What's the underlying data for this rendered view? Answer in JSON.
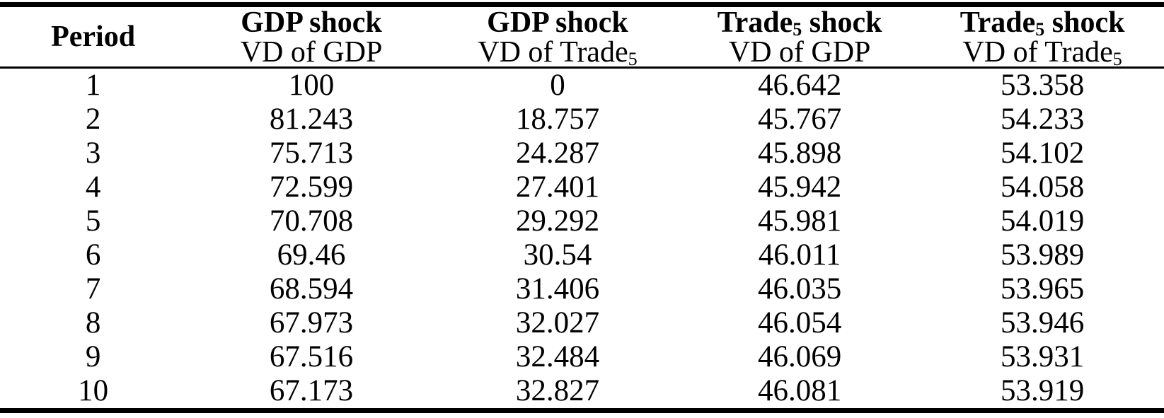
{
  "colors": {
    "text": "#000000",
    "border": "#000000",
    "background": "#ffffff"
  },
  "table": {
    "headers": [
      {
        "top": {
          "pre": "Period"
        }
      },
      {
        "top": {
          "pre": "GDP shock"
        },
        "bottom": {
          "pre": "VD of GDP"
        }
      },
      {
        "top": {
          "pre": "GDP shock"
        },
        "bottom": {
          "pre": "VD of Trade",
          "sub": "5"
        }
      },
      {
        "top": {
          "pre": "Trade",
          "sub": "5",
          "post": " shock"
        },
        "bottom": {
          "pre": "VD of GDP"
        }
      },
      {
        "top": {
          "pre": "Trade",
          "sub": "5",
          "post": " shock"
        },
        "bottom": {
          "pre": "VD of Trade",
          "sub": "5"
        }
      }
    ],
    "rows": [
      {
        "period": "1",
        "values": [
          "100",
          "0",
          "46.642",
          "53.358"
        ]
      },
      {
        "period": "2",
        "values": [
          "81.243",
          "18.757",
          "45.767",
          "54.233"
        ]
      },
      {
        "period": "3",
        "values": [
          "75.713",
          "24.287",
          "45.898",
          "54.102"
        ]
      },
      {
        "period": "4",
        "values": [
          "72.599",
          "27.401",
          "45.942",
          "54.058"
        ]
      },
      {
        "period": "5",
        "values": [
          "70.708",
          "29.292",
          "45.981",
          "54.019"
        ]
      },
      {
        "period": "6",
        "values": [
          "69.46",
          "30.54",
          "46.011",
          "53.989"
        ]
      },
      {
        "period": "7",
        "values": [
          "68.594",
          "31.406",
          "46.035",
          "53.965"
        ]
      },
      {
        "period": "8",
        "values": [
          "67.973",
          "32.027",
          "46.054",
          "53.946"
        ]
      },
      {
        "period": "9",
        "values": [
          "67.516",
          "32.484",
          "46.069",
          "53.931"
        ]
      },
      {
        "period": "10",
        "values": [
          "67.173",
          "32.827",
          "46.081",
          "53.919"
        ]
      }
    ]
  }
}
